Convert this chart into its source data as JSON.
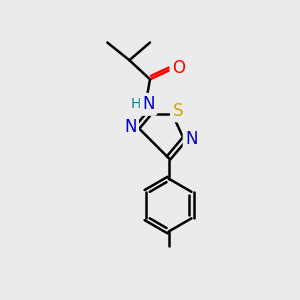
{
  "bg_color": "#ebebeb",
  "line_color": "#000000",
  "bond_width": 1.8,
  "font_size": 11,
  "atom_colors": {
    "O": "#ff0000",
    "N": "#0000cc",
    "S": "#ccaa00",
    "H": "#008888",
    "C": "#000000"
  }
}
